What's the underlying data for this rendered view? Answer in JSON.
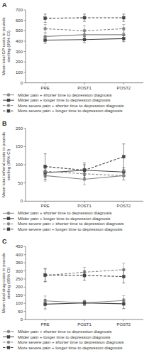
{
  "chart_data": [
    {
      "type": "line",
      "title": "A",
      "ylabel": "Mean total GP costs in pounds sterling (95% CI)",
      "categories": [
        "PRE",
        "POST1",
        "POST2"
      ],
      "ylim": [
        0,
        700
      ],
      "yticks": [
        0,
        100,
        200,
        300,
        400,
        500,
        600,
        700
      ],
      "grid": false,
      "legend": "bottom",
      "series": [
        {
          "name": "Milder pain + shorter time to depression diagnosis",
          "color": "#888888",
          "line_style": "solid",
          "marker": "circle",
          "values": [
            445,
            462,
            462
          ],
          "error_low": [
            35,
            48,
            40
          ],
          "error_high": [
            35,
            48,
            40
          ]
        },
        {
          "name": "Milder pain + longer time to depression diagnosis",
          "color": "#444444",
          "line_style": "solid",
          "marker": "square",
          "values": [
            410,
            415,
            425
          ],
          "error_low": [
            30,
            30,
            30
          ],
          "error_high": [
            30,
            30,
            30
          ]
        },
        {
          "name": "More severe pain + shorter time to depression diagnosis",
          "color": "#888888",
          "line_style": "dashed",
          "marker": "circle",
          "values": [
            520,
            500,
            520
          ],
          "error_low": [
            40,
            50,
            40
          ],
          "error_high": [
            40,
            50,
            40
          ]
        },
        {
          "name": "More severe pain + longer time to depression diagnosis",
          "color": "#444444",
          "line_style": "dashed",
          "marker": "square",
          "values": [
            620,
            625,
            625
          ],
          "error_low": [
            40,
            35,
            35
          ],
          "error_high": [
            40,
            35,
            35
          ]
        }
      ]
    },
    {
      "type": "line",
      "title": "B",
      "ylabel": "Mean total referral costs in pounds sterling (95% CI)",
      "categories": [
        "PRE",
        "POST1",
        "POST2"
      ],
      "ylim": [
        0,
        200
      ],
      "yticks": [
        0,
        50,
        100,
        150,
        200
      ],
      "grid": false,
      "legend": "bottom",
      "series": [
        {
          "name": "Milder pain + shorter time to depression diagnosis",
          "color": "#888888",
          "line_style": "solid",
          "marker": "circle",
          "values": [
            70,
            60,
            70
          ],
          "error_low": [
            15,
            15,
            12
          ],
          "error_high": [
            15,
            15,
            12
          ]
        },
        {
          "name": "Milder pain + longer time to depression diagnosis",
          "color": "#444444",
          "line_style": "solid",
          "marker": "square",
          "values": [
            78,
            85,
            80
          ],
          "error_low": [
            12,
            15,
            12
          ],
          "error_high": [
            12,
            15,
            12
          ]
        },
        {
          "name": "More severe pain + shorter time to depression diagnosis",
          "color": "#888888",
          "line_style": "dashed",
          "marker": "circle",
          "values": [
            82,
            75,
            70
          ],
          "error_low": [
            15,
            15,
            12
          ],
          "error_high": [
            15,
            15,
            12
          ]
        },
        {
          "name": "More severe pain + longer time to depression diagnosis",
          "color": "#444444",
          "line_style": "dashed",
          "marker": "square",
          "values": [
            95,
            85,
            122
          ],
          "error_low": [
            35,
            20,
            35
          ],
          "error_high": [
            35,
            20,
            35
          ]
        }
      ]
    },
    {
      "type": "line",
      "title": "C",
      "ylabel": "Mean total drug costs in pounds sterling (95% CI)",
      "categories": [
        "PRE",
        "POST1",
        "POST2"
      ],
      "ylim": [
        0,
        450
      ],
      "yticks": [
        0,
        50,
        100,
        150,
        200,
        250,
        300,
        350,
        400,
        450
      ],
      "grid": false,
      "legend": "bottom",
      "series": [
        {
          "name": "Milder pain + shorter time to depression diagnosis",
          "color": "#888888",
          "line_style": "solid",
          "marker": "circle",
          "values": [
            115,
            103,
            117
          ],
          "error_low": [
            30,
            15,
            30
          ],
          "error_high": [
            30,
            15,
            30
          ]
        },
        {
          "name": "Milder pain + longer time to depression diagnosis",
          "color": "#444444",
          "line_style": "solid",
          "marker": "square",
          "values": [
            95,
            102,
            97
          ],
          "error_low": [
            30,
            15,
            30
          ],
          "error_high": [
            30,
            15,
            30
          ]
        },
        {
          "name": "More severe pain + shorter time to depression diagnosis",
          "color": "#888888",
          "line_style": "dashed",
          "marker": "circle",
          "values": [
            272,
            292,
            308
          ],
          "error_low": [
            40,
            30,
            40
          ],
          "error_high": [
            40,
            30,
            40
          ]
        },
        {
          "name": "More severe pain + longer time to depression diagnosis",
          "color": "#444444",
          "line_style": "dashed",
          "marker": "square",
          "values": [
            275,
            272,
            265
          ],
          "error_low": [
            40,
            30,
            40
          ],
          "error_high": [
            40,
            30,
            40
          ]
        }
      ]
    }
  ]
}
